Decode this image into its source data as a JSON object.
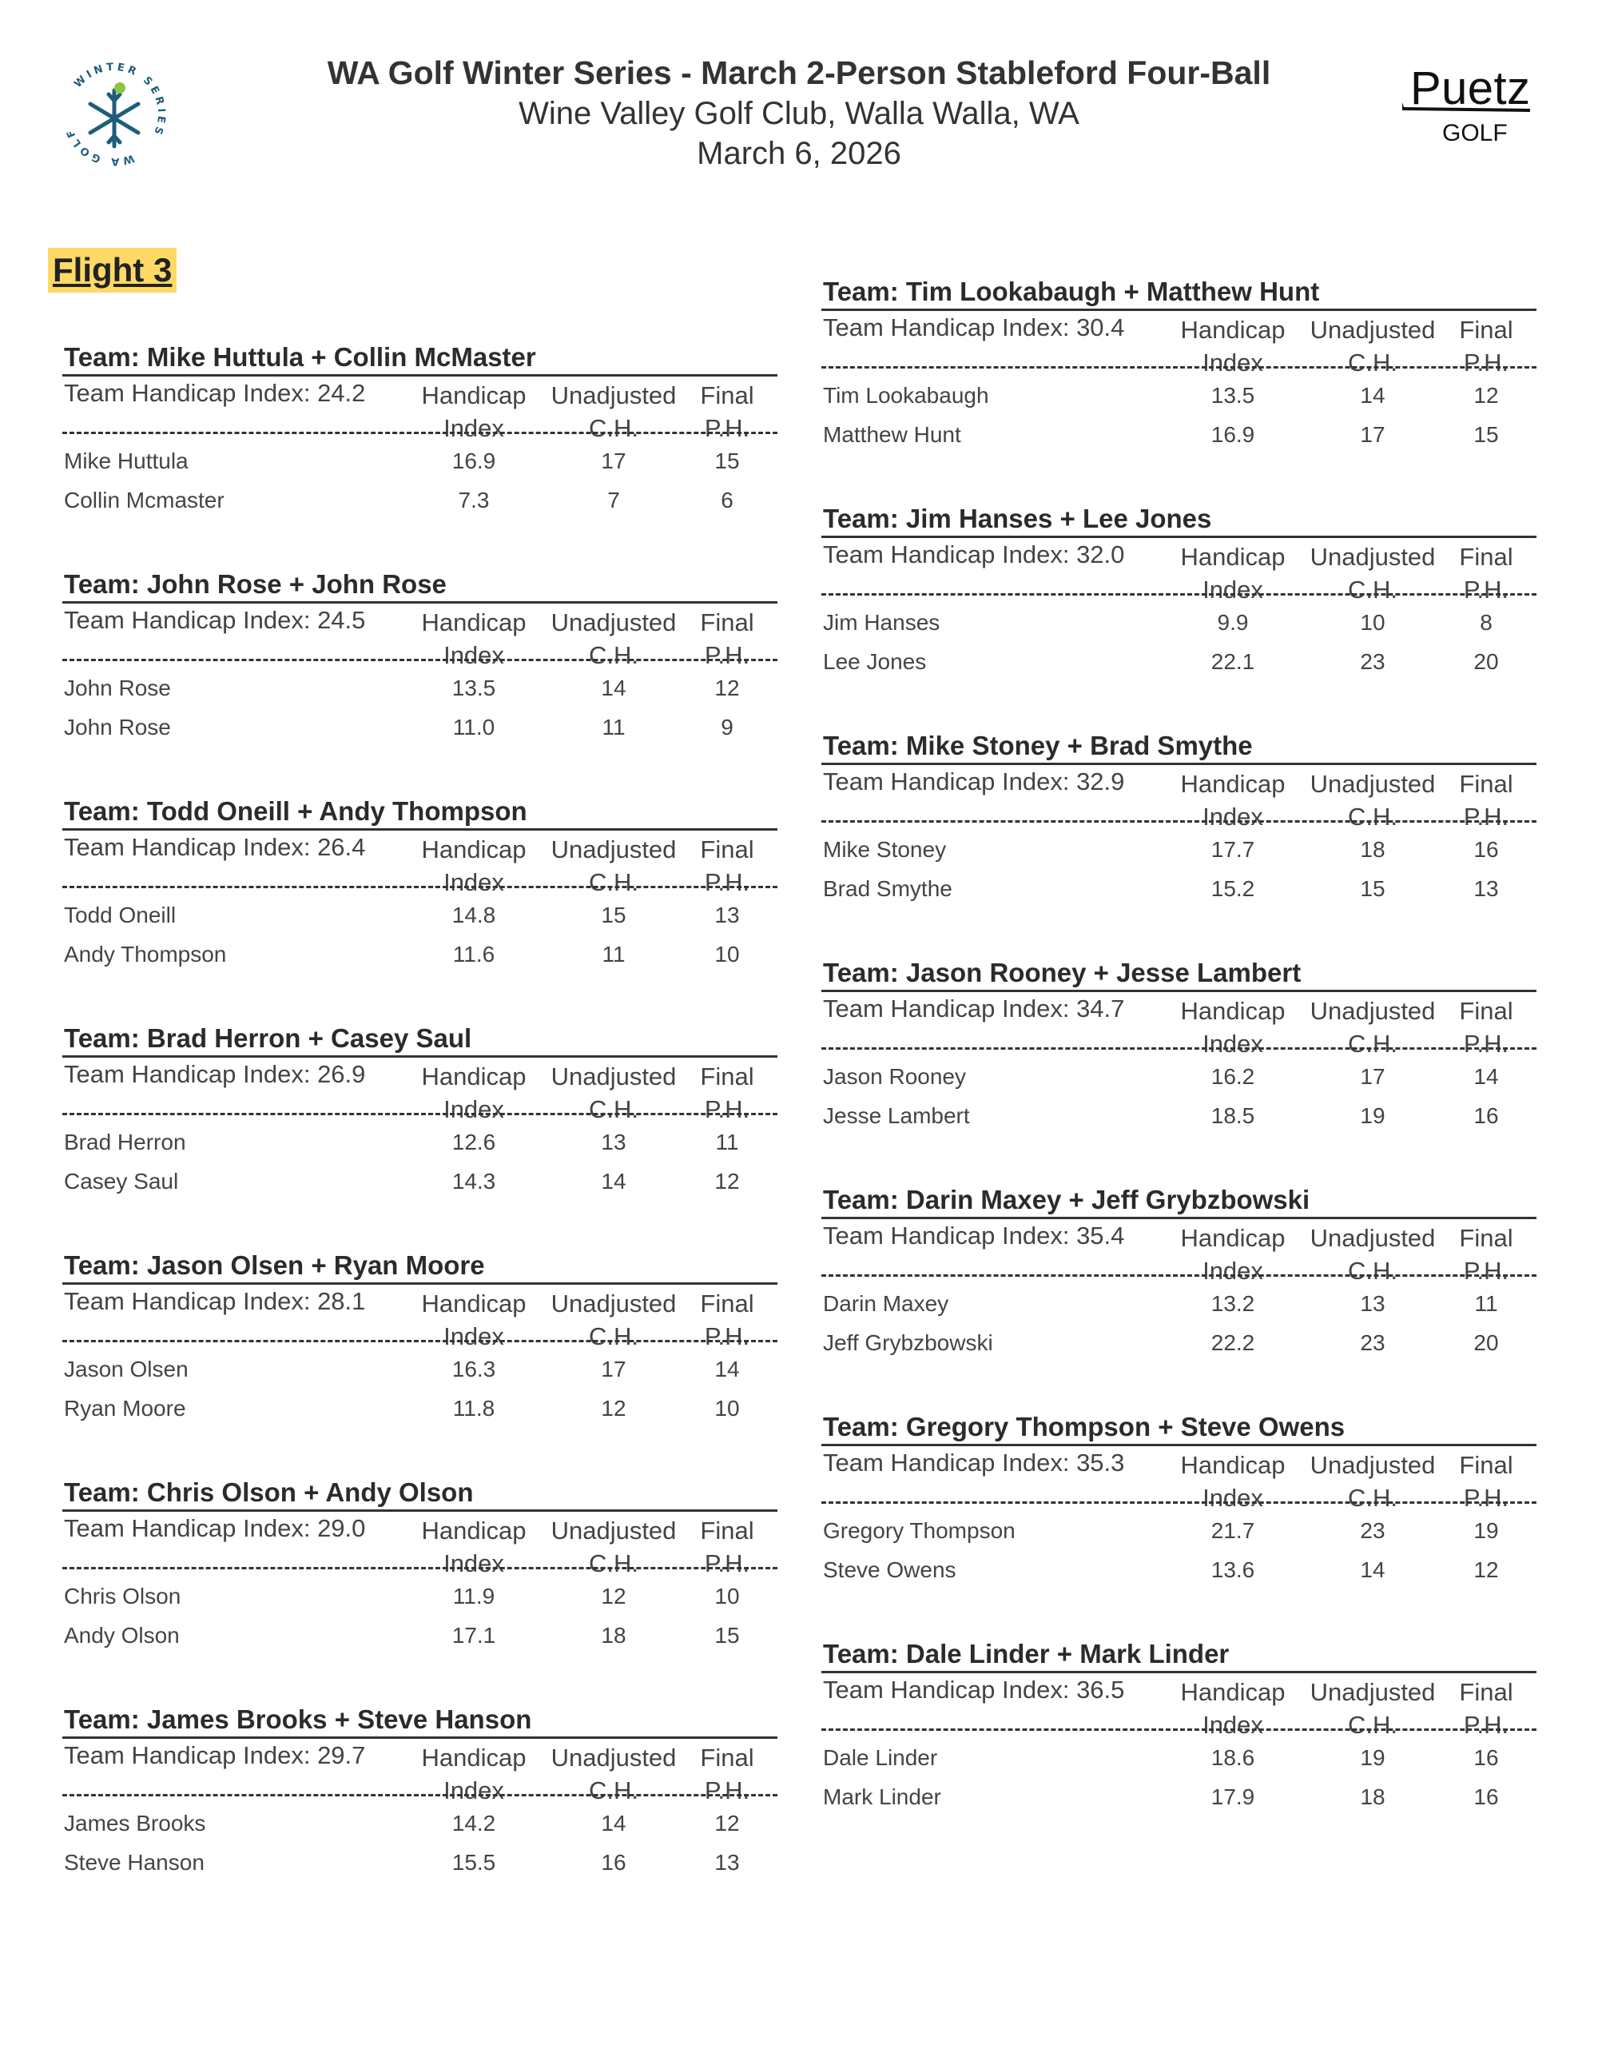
{
  "header": {
    "title": "WA Golf Winter Series - March 2-Person Stableford Four-Ball",
    "subtitle": "Wine Valley Golf Club, Walla Walla, WA",
    "date": "March 6, 2026",
    "left_logo": "WINTER SERIES WA GOLF",
    "right_logo": "Puetz GOLF"
  },
  "flight": "Flight 3",
  "columns": {
    "hi": [
      "Handicap",
      "Index"
    ],
    "ch": [
      "Unadjusted",
      "C.H."
    ],
    "ph": [
      "Final",
      "P.H."
    ]
  },
  "colors": {
    "flight_highlight": "#ffd966",
    "logo_blue": "#1f5d7a",
    "logo_green": "#8cc63f"
  },
  "left_teams": [
    {
      "title": "Team: Mike Huttula + Collin McMaster",
      "thi": "Team Handicap Index: 24.2",
      "players": [
        [
          "Mike Huttula",
          "16.9",
          "17",
          "15"
        ],
        [
          "Collin Mcmaster",
          "7.3",
          "7",
          "6"
        ]
      ]
    },
    {
      "title": "Team: John Rose + John Rose",
      "thi": "Team Handicap Index: 24.5",
      "players": [
        [
          "John Rose",
          "13.5",
          "14",
          "12"
        ],
        [
          "John Rose",
          "11.0",
          "11",
          "9"
        ]
      ]
    },
    {
      "title": "Team: Todd Oneill + Andy Thompson",
      "thi": "Team Handicap Index: 26.4",
      "players": [
        [
          "Todd Oneill",
          "14.8",
          "15",
          "13"
        ],
        [
          "Andy Thompson",
          "11.6",
          "11",
          "10"
        ]
      ]
    },
    {
      "title": "Team: Brad Herron + Casey Saul",
      "thi": "Team Handicap Index: 26.9",
      "players": [
        [
          "Brad Herron",
          "12.6",
          "13",
          "11"
        ],
        [
          "Casey Saul",
          "14.3",
          "14",
          "12"
        ]
      ]
    },
    {
      "title": "Team: Jason Olsen + Ryan Moore",
      "thi": "Team Handicap Index: 28.1",
      "players": [
        [
          "Jason Olsen",
          "16.3",
          "17",
          "14"
        ],
        [
          "Ryan Moore",
          "11.8",
          "12",
          "10"
        ]
      ]
    },
    {
      "title": "Team: Chris Olson + Andy Olson",
      "thi": "Team Handicap Index: 29.0",
      "players": [
        [
          "Chris Olson",
          "11.9",
          "12",
          "10"
        ],
        [
          "Andy Olson",
          "17.1",
          "18",
          "15"
        ]
      ]
    },
    {
      "title": "Team: James Brooks + Steve Hanson",
      "thi": "Team Handicap Index: 29.7",
      "players": [
        [
          "James Brooks",
          "14.2",
          "14",
          "12"
        ],
        [
          "Steve Hanson",
          "15.5",
          "16",
          "13"
        ]
      ]
    }
  ],
  "right_teams": [
    {
      "title": "Team: Tim Lookabaugh + Matthew Hunt",
      "thi": "Team Handicap Index: 30.4",
      "players": [
        [
          "Tim Lookabaugh",
          "13.5",
          "14",
          "12"
        ],
        [
          "Matthew Hunt",
          "16.9",
          "17",
          "15"
        ]
      ]
    },
    {
      "title": "Team: Jim Hanses + Lee Jones",
      "thi": "Team Handicap Index: 32.0",
      "players": [
        [
          "Jim Hanses",
          "9.9",
          "10",
          "8"
        ],
        [
          "Lee Jones",
          "22.1",
          "23",
          "20"
        ]
      ]
    },
    {
      "title": "Team: Mike Stoney + Brad Smythe",
      "thi": "Team Handicap Index: 32.9",
      "players": [
        [
          "Mike Stoney",
          "17.7",
          "18",
          "16"
        ],
        [
          "Brad Smythe",
          "15.2",
          "15",
          "13"
        ]
      ]
    },
    {
      "title": "Team: Jason Rooney + Jesse Lambert",
      "thi": "Team Handicap Index: 34.7",
      "players": [
        [
          "Jason Rooney",
          "16.2",
          "17",
          "14"
        ],
        [
          "Jesse Lambert",
          "18.5",
          "19",
          "16"
        ]
      ]
    },
    {
      "title": "Team: Darin Maxey + Jeff Grybzbowski",
      "thi": "Team Handicap Index: 35.4",
      "players": [
        [
          "Darin Maxey",
          "13.2",
          "13",
          "11"
        ],
        [
          "Jeff Grybzbowski",
          "22.2",
          "23",
          "20"
        ]
      ]
    },
    {
      "title": "Team: Gregory Thompson + Steve Owens",
      "thi": "Team Handicap Index: 35.3",
      "players": [
        [
          "Gregory Thompson",
          "21.7",
          "23",
          "19"
        ],
        [
          "Steve Owens",
          "13.6",
          "14",
          "12"
        ]
      ]
    },
    {
      "title": "Team: Dale Linder + Mark Linder",
      "thi": "Team Handicap Index: 36.5",
      "players": [
        [
          "Dale Linder",
          "18.6",
          "19",
          "16"
        ],
        [
          "Mark Linder",
          "17.9",
          "18",
          "16"
        ]
      ]
    }
  ]
}
